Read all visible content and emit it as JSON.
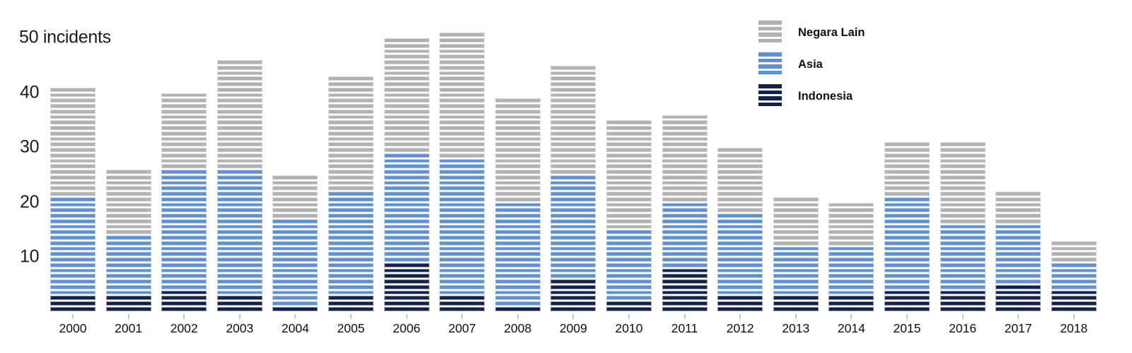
{
  "chart_data": {
    "type": "bar",
    "stacked": true,
    "unit_style": "waffle-rows (1 horizontal stripe = 1 incident)",
    "title": "50 incidents",
    "categories": [
      "2000",
      "2001",
      "2002",
      "2003",
      "2004",
      "2005",
      "2006",
      "2007",
      "2008",
      "2009",
      "2010",
      "2011",
      "2012",
      "2013",
      "2014",
      "2015",
      "2016",
      "2017",
      "2018"
    ],
    "series": [
      {
        "name": "Indonesia",
        "color": "#13234e",
        "values": [
          3,
          3,
          4,
          3,
          1,
          3,
          9,
          3,
          1,
          6,
          2,
          8,
          3,
          3,
          3,
          4,
          4,
          5,
          4
        ]
      },
      {
        "name": "Asia",
        "color": "#5d90d5",
        "values": [
          18,
          11,
          22,
          23,
          16,
          19,
          20,
          25,
          19,
          19,
          13,
          12,
          15,
          9,
          9,
          17,
          12,
          11,
          5
        ]
      },
      {
        "name": "Negara Lain",
        "color": "#b2b2b2",
        "values": [
          20,
          12,
          14,
          20,
          8,
          21,
          21,
          23,
          19,
          20,
          20,
          16,
          12,
          9,
          8,
          10,
          15,
          6,
          4
        ]
      }
    ],
    "totals": [
      41,
      26,
      40,
      46,
      25,
      43,
      50,
      51,
      39,
      45,
      35,
      36,
      30,
      21,
      20,
      31,
      31,
      22,
      13
    ],
    "y_axis": {
      "unit_label": "50 incidents",
      "unit_label_value": 50,
      "ticks": [
        {
          "value": 40,
          "label": "40"
        },
        {
          "value": 30,
          "label": "30"
        },
        {
          "value": 20,
          "label": "20"
        },
        {
          "value": 10,
          "label": "10"
        }
      ],
      "max": 50,
      "grid": false
    },
    "x_axis": {
      "tick_marks": true
    },
    "legend": {
      "position": "top-right",
      "items": [
        {
          "label": "Negara Lain",
          "series": "Negara Lain"
        },
        {
          "label": "Asia",
          "series": "Asia"
        },
        {
          "label": "Indonesia",
          "series": "Indonesia"
        }
      ]
    }
  }
}
